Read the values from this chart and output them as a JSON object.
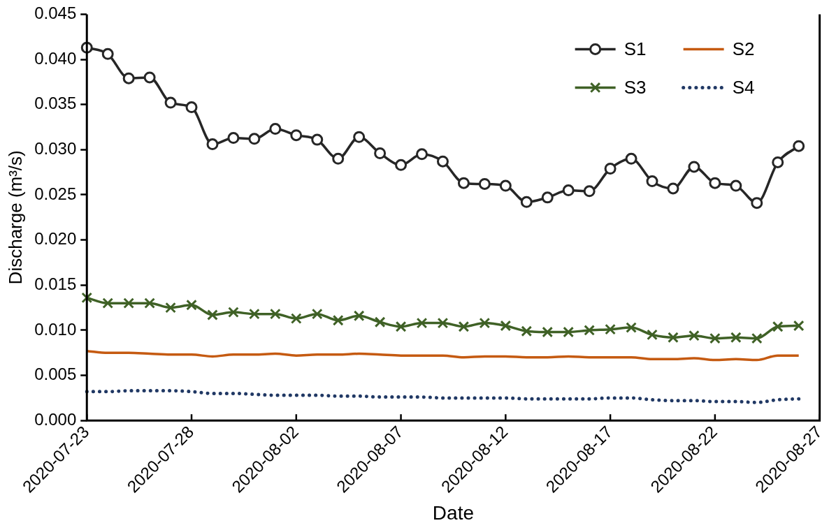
{
  "chart_data": {
    "type": "line",
    "xlabel": "Date",
    "ylabel": "Discharge (m³/s)",
    "x": [
      "2020-07-23",
      "2020-07-24",
      "2020-07-25",
      "2020-07-26",
      "2020-07-27",
      "2020-07-28",
      "2020-07-29",
      "2020-07-30",
      "2020-07-31",
      "2020-08-01",
      "2020-08-02",
      "2020-08-03",
      "2020-08-04",
      "2020-08-05",
      "2020-08-06",
      "2020-08-07",
      "2020-08-08",
      "2020-08-09",
      "2020-08-10",
      "2020-08-11",
      "2020-08-12",
      "2020-08-13",
      "2020-08-14",
      "2020-08-15",
      "2020-08-16",
      "2020-08-17",
      "2020-08-18",
      "2020-08-19",
      "2020-08-20",
      "2020-08-21",
      "2020-08-22",
      "2020-08-23",
      "2020-08-24",
      "2020-08-25",
      "2020-08-26"
    ],
    "series": [
      {
        "name": "S1",
        "color": "#262626",
        "marker": "circle",
        "line_style": "solid",
        "values": [
          0.0413,
          0.0406,
          0.0379,
          0.038,
          0.0352,
          0.0347,
          0.0306,
          0.0313,
          0.0312,
          0.0323,
          0.0316,
          0.0311,
          0.029,
          0.0314,
          0.0296,
          0.0283,
          0.0295,
          0.0287,
          0.0263,
          0.0262,
          0.026,
          0.0242,
          0.0247,
          0.0255,
          0.0254,
          0.0279,
          0.029,
          0.0265,
          0.0257,
          0.0281,
          0.0263,
          0.026,
          0.0241,
          0.0286,
          0.0304
        ]
      },
      {
        "name": "S2",
        "color": "#c55a11",
        "marker": "none",
        "line_style": "solid",
        "values": [
          0.0077,
          0.0075,
          0.0075,
          0.0074,
          0.0073,
          0.0073,
          0.0071,
          0.0073,
          0.0073,
          0.0074,
          0.0072,
          0.0073,
          0.0073,
          0.0074,
          0.0073,
          0.0072,
          0.0072,
          0.0072,
          0.007,
          0.0071,
          0.0071,
          0.007,
          0.007,
          0.0071,
          0.007,
          0.007,
          0.007,
          0.0068,
          0.0068,
          0.0069,
          0.0067,
          0.0068,
          0.0067,
          0.0072,
          0.0072
        ]
      },
      {
        "name": "S3",
        "color": "#3f6126",
        "marker": "cross",
        "line_style": "solid",
        "values": [
          0.0136,
          0.013,
          0.013,
          0.013,
          0.0125,
          0.0128,
          0.0117,
          0.012,
          0.0118,
          0.0118,
          0.0113,
          0.0118,
          0.0111,
          0.0116,
          0.0109,
          0.0104,
          0.0108,
          0.0108,
          0.0104,
          0.0108,
          0.0105,
          0.0099,
          0.0098,
          0.0098,
          0.01,
          0.0101,
          0.0103,
          0.0095,
          0.0092,
          0.0094,
          0.0091,
          0.0092,
          0.0091,
          0.0104,
          0.0105
        ]
      },
      {
        "name": "S4",
        "color": "#203864",
        "marker": "none",
        "line_style": "dotted",
        "values": [
          0.0032,
          0.0032,
          0.0033,
          0.0033,
          0.0033,
          0.0032,
          0.003,
          0.003,
          0.0029,
          0.0028,
          0.0028,
          0.0028,
          0.0027,
          0.0027,
          0.0026,
          0.0026,
          0.0026,
          0.0025,
          0.0025,
          0.0025,
          0.0025,
          0.0024,
          0.0024,
          0.0024,
          0.0024,
          0.0025,
          0.0025,
          0.0023,
          0.0022,
          0.0022,
          0.0021,
          0.0021,
          0.002,
          0.0023,
          0.0024
        ]
      }
    ],
    "xlim": [
      "2020-07-23",
      "2020-08-27"
    ],
    "xticks": [
      "2020-07-23",
      "2020-07-28",
      "2020-08-02",
      "2020-08-07",
      "2020-08-12",
      "2020-08-17",
      "2020-08-22",
      "2020-08-27"
    ],
    "ylim": [
      0,
      0.045
    ],
    "yticks": [
      {
        "value": 0,
        "label": "0.000"
      },
      {
        "value": 0.005,
        "label": "0.005"
      },
      {
        "value": 0.01,
        "label": "0.010"
      },
      {
        "value": 0.015,
        "label": "0.015"
      },
      {
        "value": 0.02,
        "label": "0.020"
      },
      {
        "value": 0.025,
        "label": "0.025"
      },
      {
        "value": 0.03,
        "label": "0.030"
      },
      {
        "value": 0.035,
        "label": "0.035"
      },
      {
        "value": 0.04,
        "label": "0.040"
      },
      {
        "value": 0.045,
        "label": "0.045"
      }
    ],
    "grid": false,
    "legend": "top right"
  }
}
